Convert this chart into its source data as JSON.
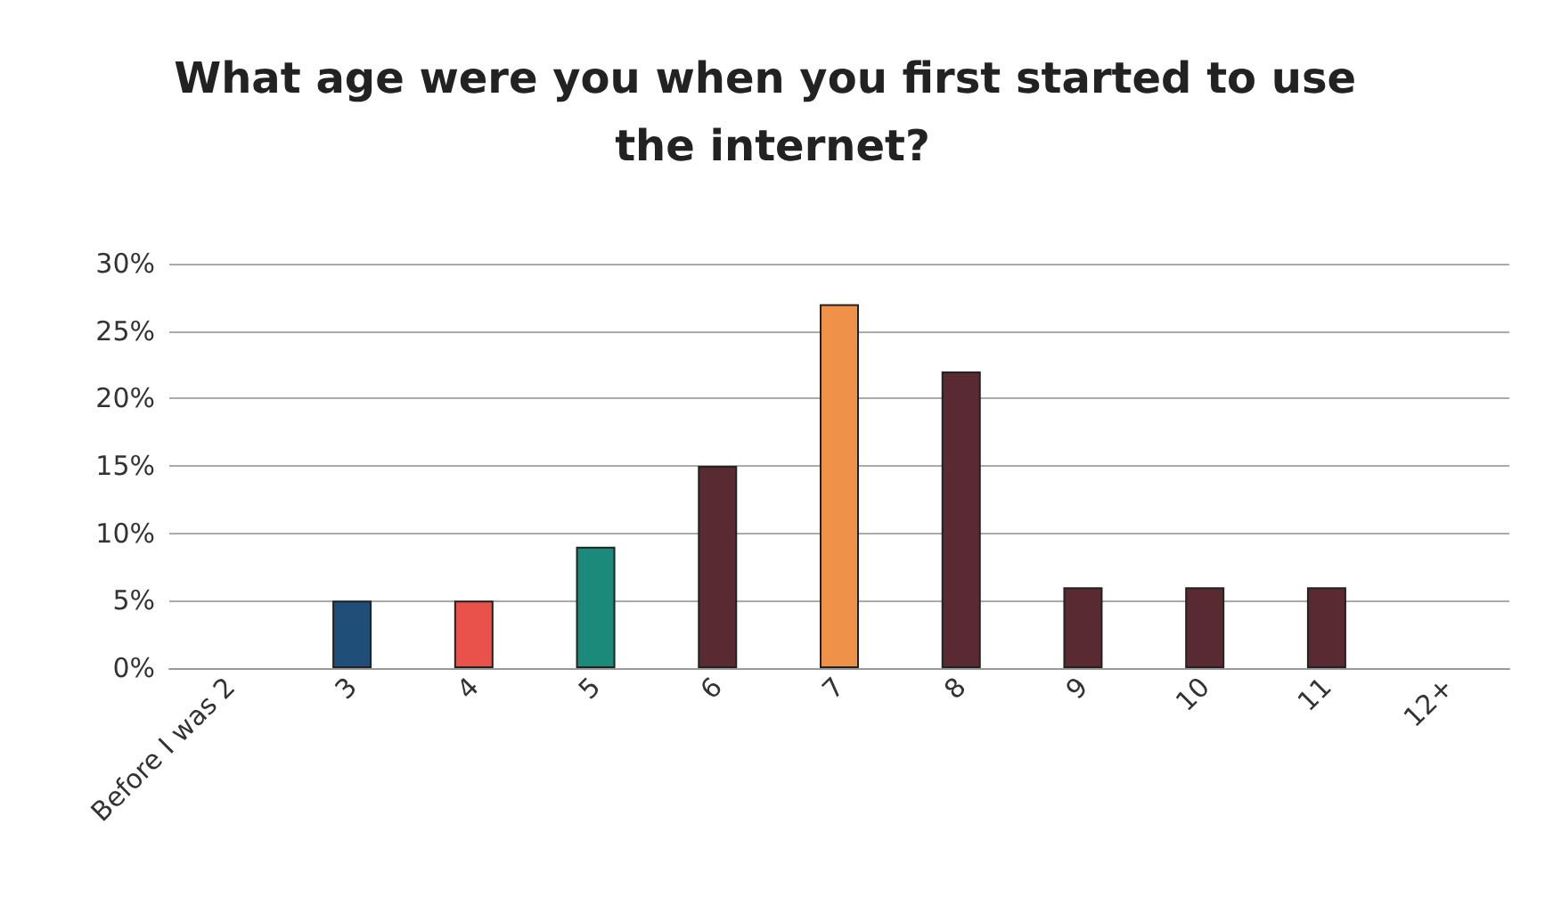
{
  "chart_data": {
    "type": "bar",
    "title": "What age were you when you first started to use the internet?",
    "categories": [
      "Before I was 2",
      "3",
      "4",
      "5",
      "6",
      "7",
      "8",
      "9",
      "10",
      "11",
      "12+"
    ],
    "values": [
      0,
      5,
      5,
      9,
      15,
      27,
      22,
      6,
      6,
      6,
      0
    ],
    "colors": [
      "#5a2a33",
      "#1f4e79",
      "#e8524a",
      "#1b8a7a",
      "#5a2a33",
      "#f0914a",
      "#5a2a33",
      "#5a2a33",
      "#5a2a33",
      "#5a2a33",
      "#5a2a33"
    ],
    "ylim": [
      0,
      30
    ],
    "yticks": [
      {
        "value": 0,
        "label": "0%"
      },
      {
        "value": 5,
        "label": "5%"
      },
      {
        "value": 10,
        "label": "10%"
      },
      {
        "value": 15,
        "label": "15%"
      },
      {
        "value": 20,
        "label": "20%"
      },
      {
        "value": 25,
        "label": "25%"
      },
      {
        "value": 30,
        "label": "30%"
      }
    ],
    "grid": "y"
  }
}
